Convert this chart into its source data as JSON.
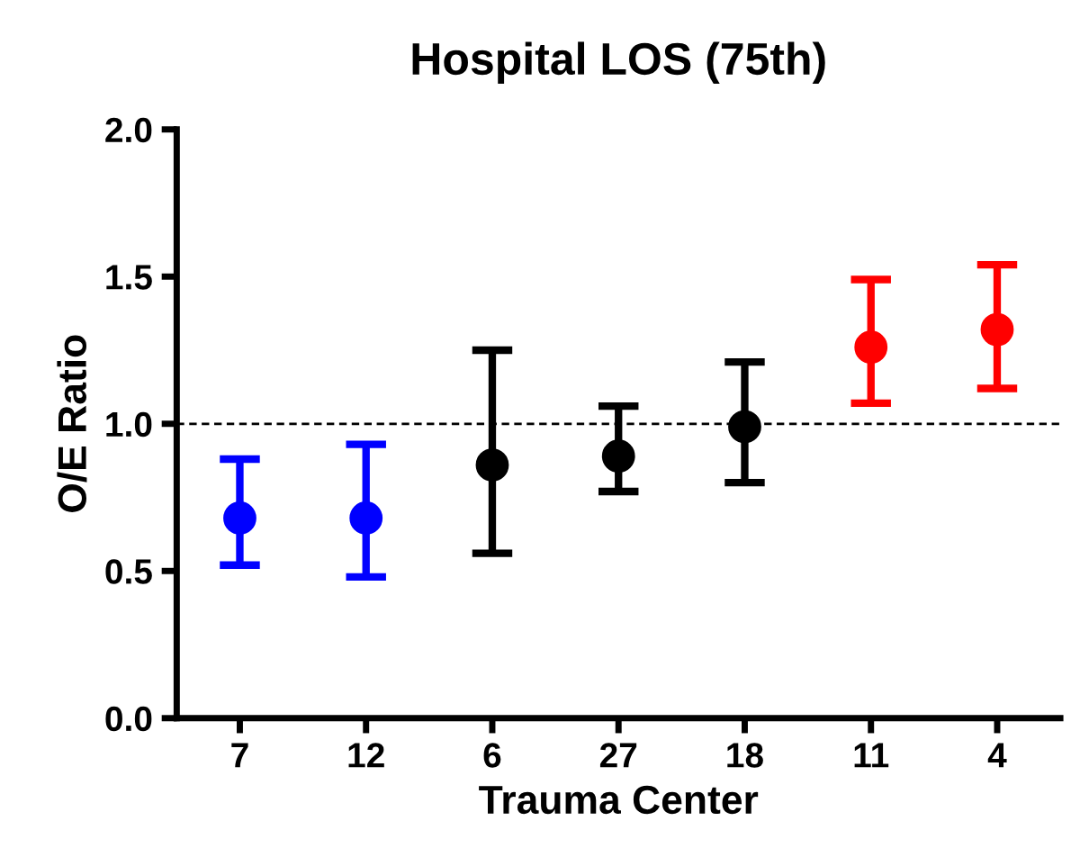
{
  "chart_data": {
    "type": "scatter",
    "title": "Hospital LOS (75th)",
    "xlabel": "Trauma Center",
    "ylabel": "O/E Ratio",
    "categories": [
      "7",
      "12",
      "6",
      "27",
      "18",
      "11",
      "4"
    ],
    "series": [
      {
        "values": [
          0.68,
          0.68,
          0.86,
          0.89,
          0.99,
          1.26,
          1.32
        ],
        "errors": [
          [
            0.52,
            0.88
          ],
          [
            0.48,
            0.93
          ],
          [
            0.56,
            1.25
          ],
          [
            0.77,
            1.06
          ],
          [
            0.8,
            1.21
          ],
          [
            1.07,
            1.49
          ],
          [
            1.12,
            1.54
          ]
        ],
        "colors": [
          "#0000ff",
          "#0000ff",
          "#000000",
          "#000000",
          "#000000",
          "#ff0000",
          "#ff0000"
        ]
      }
    ],
    "ylim": [
      0,
      2
    ],
    "yticks": [
      {
        "value": 0,
        "label": "0.0"
      },
      {
        "value": 0.5,
        "label": "0.5"
      },
      {
        "value": 1,
        "label": "1.0"
      },
      {
        "value": 1.5,
        "label": "1.5"
      },
      {
        "value": 2,
        "label": "2.0"
      }
    ],
    "ref_lines": [
      {
        "axis": "y",
        "value": 1,
        "color": "#000000",
        "line_style": "dashed"
      }
    ],
    "marker": "circle",
    "grid": false,
    "legend": false
  }
}
